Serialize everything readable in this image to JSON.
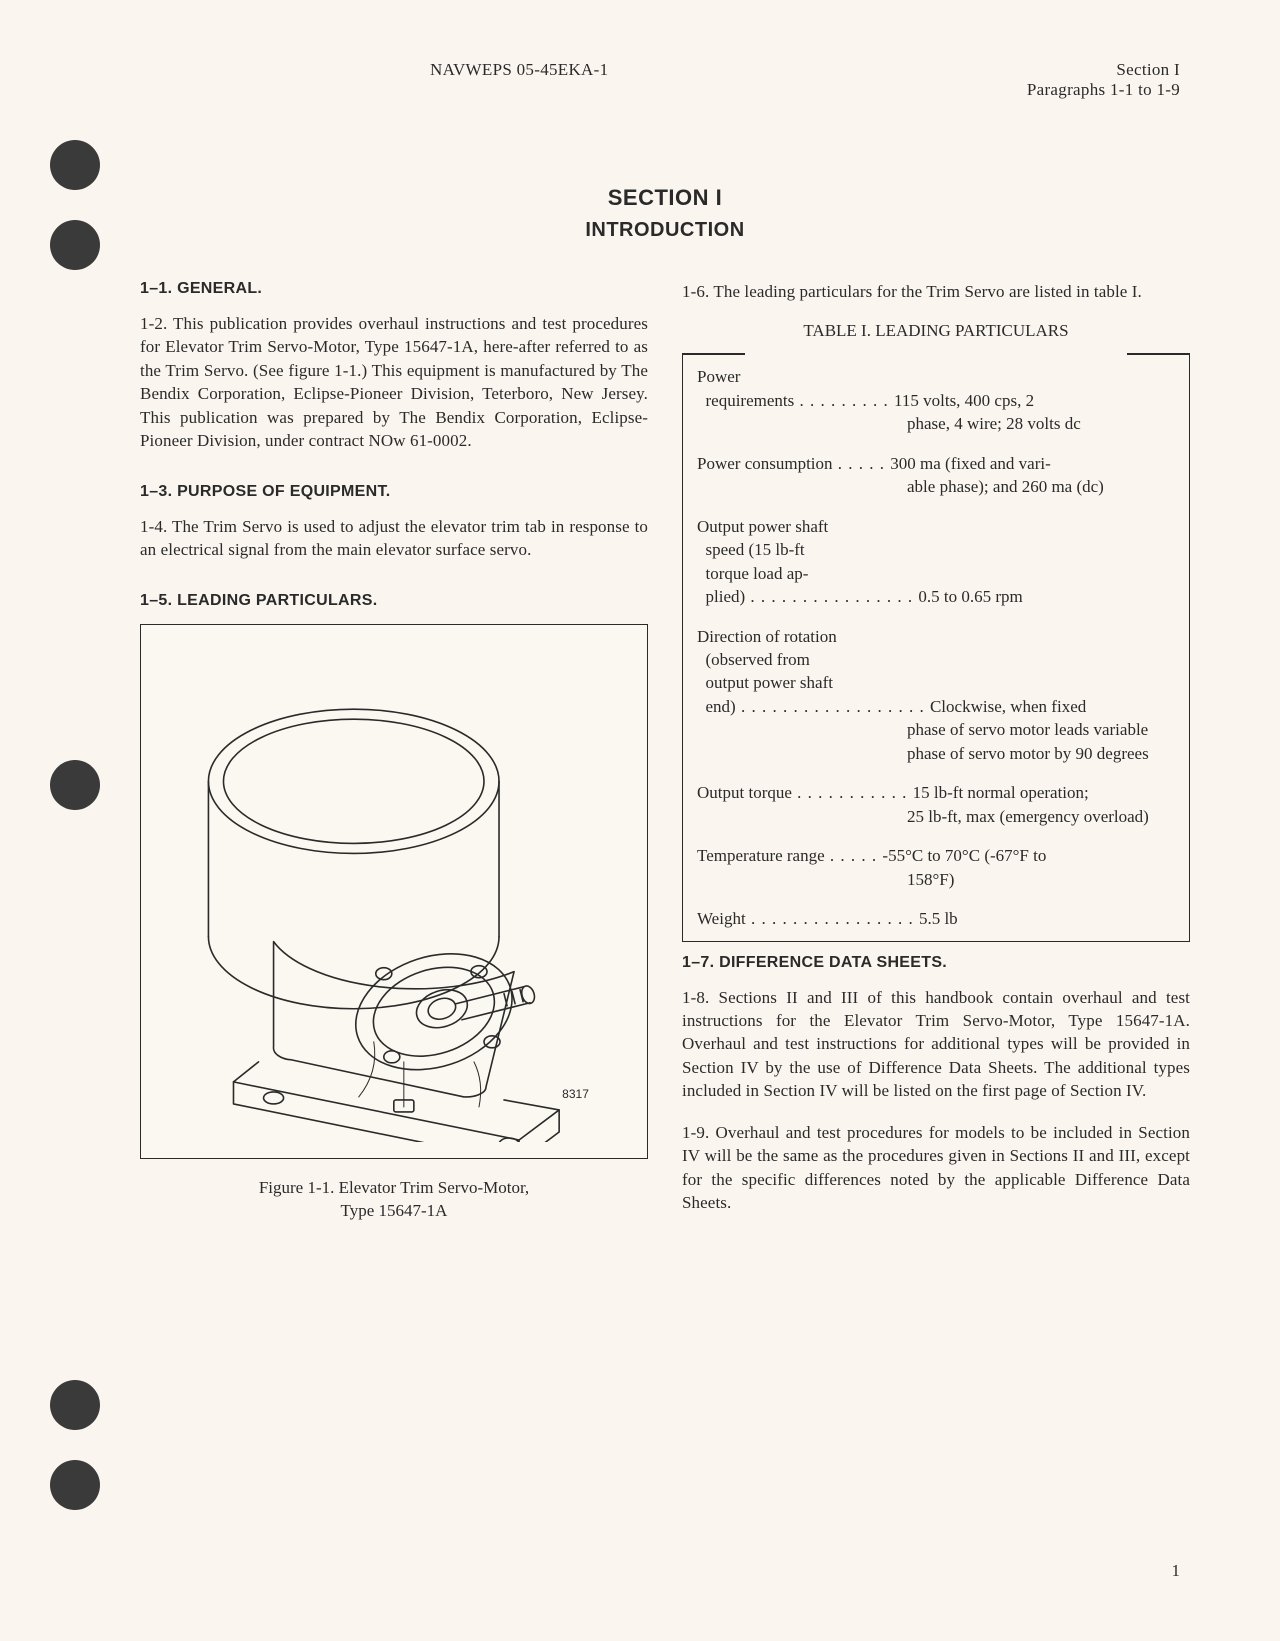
{
  "header": {
    "doc_id": "NAVWEPS 05-45EKA-1",
    "section_label": "Section I",
    "para_range": "Paragraphs 1-1 to 1-9"
  },
  "section": {
    "title": "SECTION I",
    "subtitle": "INTRODUCTION"
  },
  "left": {
    "h1": "1–1. GENERAL.",
    "p1": "1-2. This publication provides overhaul instructions and test procedures for Elevator Trim Servo-Motor, Type 15647-1A, here-after referred to as the Trim Servo. (See figure 1-1.) This equipment is manufactured by The Bendix Corporation, Eclipse-Pioneer Division, Teterboro, New Jersey. This publication was prepared by The Bendix Corporation, Eclipse-Pioneer Division, under contract NOw 61-0002.",
    "h2": "1–3. PURPOSE OF EQUIPMENT.",
    "p2": "1-4. The Trim Servo is used to adjust the elevator trim tab in response to an electrical signal from the main elevator surface servo.",
    "h3": "1–5. LEADING PARTICULARS.",
    "fig_num": "8317",
    "fig_caption_l1": "Figure 1-1.  Elevator Trim Servo-Motor,",
    "fig_caption_l2": "Type 15647-1A"
  },
  "right": {
    "p1": "1-6. The leading particulars for the Trim Servo are listed in table I.",
    "table_title": "TABLE I.  LEADING PARTICULARS",
    "entries": [
      {
        "label": "Power",
        "label2": "  requirements",
        "dots": " . . . . . . . . . ",
        "val": "115 volts, 400 cps, 2",
        "cont": "phase, 4 wire; 28 volts dc"
      },
      {
        "label": "Power consumption",
        "dots": " . . . . . ",
        "val": "300 ma (fixed and vari-",
        "cont": "able phase); and 260 ma (dc)"
      },
      {
        "label": "Output power shaft",
        "label2": "  speed (15 lb-ft",
        "label3": "  torque load ap-",
        "label4": "  plied)",
        "dots": " . . . . . . . . . . . . . . . . ",
        "val": "0.5 to 0.65 rpm"
      },
      {
        "label": "Direction of rotation",
        "label2": "  (observed from",
        "label3": "  output power shaft",
        "label4": "  end)",
        "dots": " . . . . . . . . . . . . . . . . . . ",
        "val": "Clockwise, when fixed",
        "cont": "phase of servo motor leads variable phase of servo motor by 90 degrees"
      },
      {
        "label": "Output torque",
        "dots": " . . . . . . . . . . . ",
        "val": "15 lb-ft normal operation;",
        "cont": "25 lb-ft, max (emergency overload)"
      },
      {
        "label": "Temperature range",
        "dots": " . . . . . ",
        "val": "-55°C to 70°C (-67°F to",
        "cont": "158°F)"
      },
      {
        "label": "Weight",
        "dots": "  . . . . . . . . . . . . . . . . ",
        "val": "5.5 lb"
      }
    ],
    "h2": "1–7. DIFFERENCE DATA SHEETS.",
    "p2": "1-8. Sections II and III of this handbook contain overhaul and test instructions for the Elevator Trim Servo-Motor, Type 15647-1A. Overhaul and test instructions for additional types will be provided in Section IV by the use of Difference Data Sheets. The additional types included in Section IV will be listed on the first page of Section IV.",
    "p3": "1-9. Overhaul and test procedures for models to be included in Section IV will be the same as the procedures given in Sections II and III, except for the specific differences noted by the applicable Difference Data Sheets."
  },
  "page_number": "1",
  "colors": {
    "page_bg": "#faf6ef",
    "text": "#2a2a2a",
    "border": "#2a2a2a",
    "hole": "#3a3a3a"
  }
}
